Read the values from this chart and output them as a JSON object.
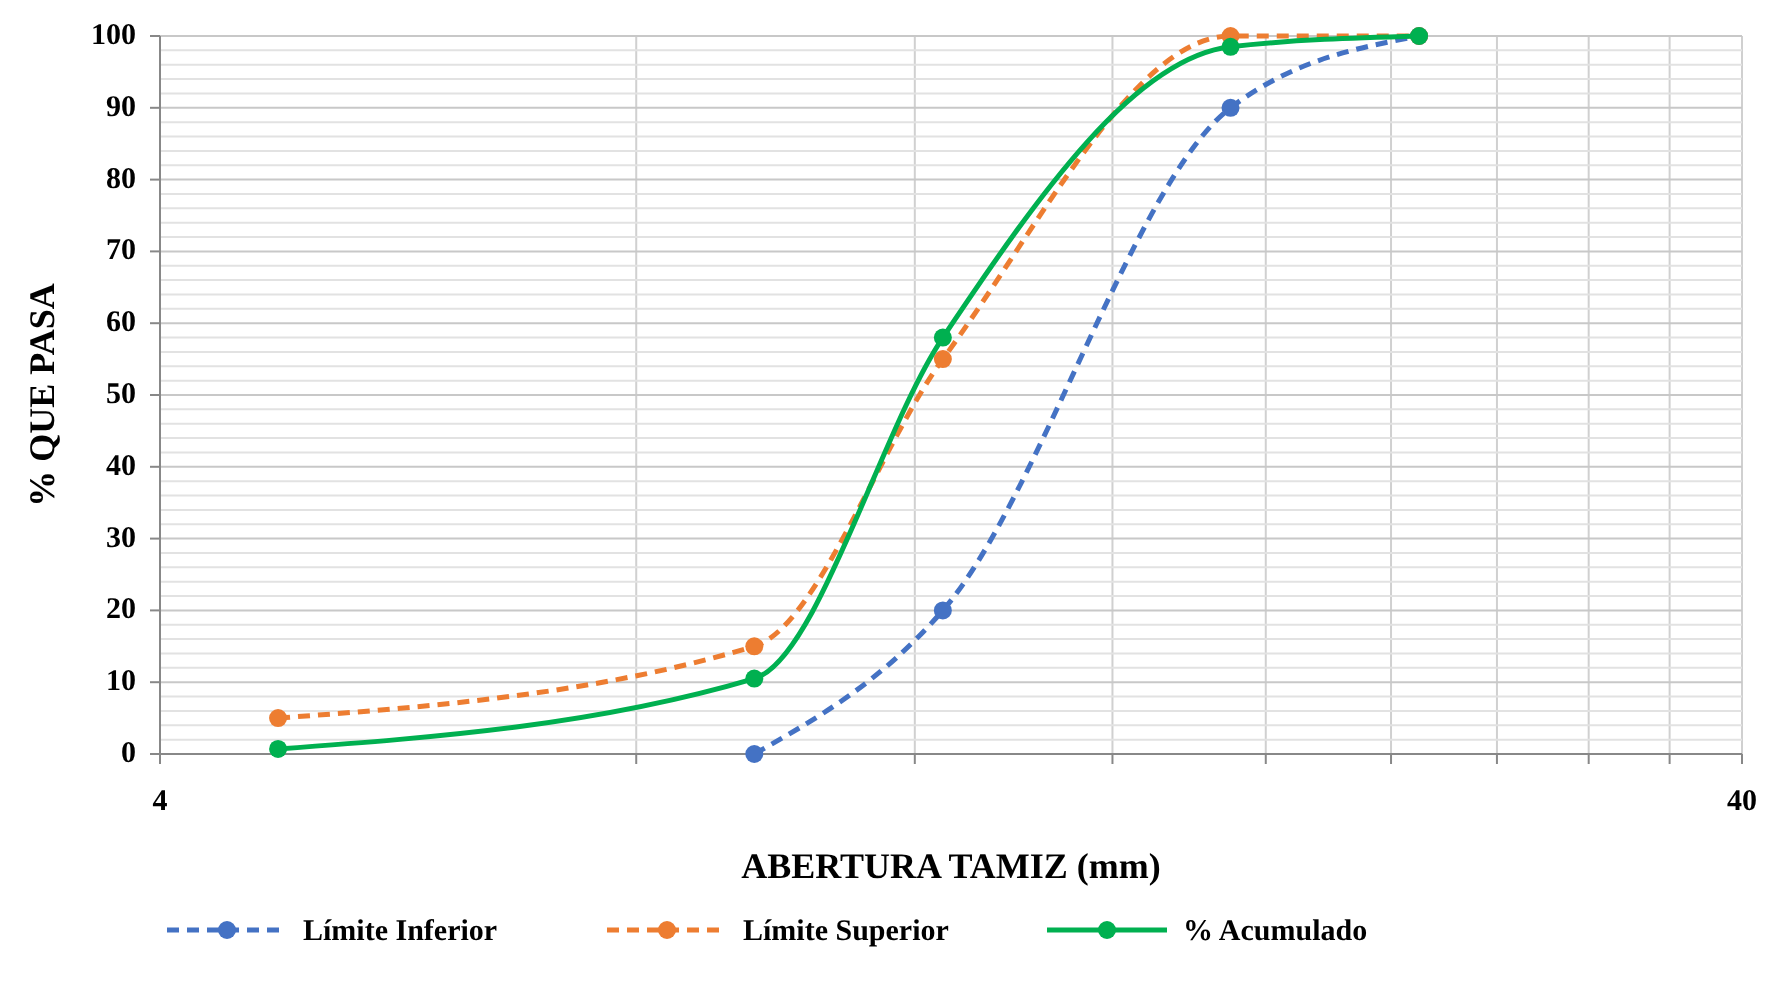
{
  "chart_data": {
    "type": "line",
    "xlabel": "ABERTURA TAMIZ (mm)",
    "ylabel": "% QUE PASA",
    "log": "x",
    "grid": true,
    "legend": "bottom",
    "marker": "circle",
    "xlim": [
      4,
      40
    ],
    "xticks": [
      4,
      {
        "value": 8,
        "label": null
      },
      {
        "value": 12,
        "label": null
      },
      {
        "value": 16,
        "label": null
      },
      {
        "value": 20,
        "label": null
      },
      {
        "value": 24,
        "label": null
      },
      {
        "value": 28,
        "label": null
      },
      {
        "value": 32,
        "label": null
      },
      {
        "value": 36,
        "label": null
      },
      40
    ],
    "ylim": [
      0,
      100
    ],
    "yticks": [
      0,
      {
        "value": 2,
        "label": null
      },
      {
        "value": 4,
        "label": null
      },
      {
        "value": 6,
        "label": null
      },
      {
        "value": 8,
        "label": null
      },
      10,
      {
        "value": 12,
        "label": null
      },
      {
        "value": 14,
        "label": null
      },
      {
        "value": 16,
        "label": null
      },
      {
        "value": 18,
        "label": null
      },
      20,
      {
        "value": 22,
        "label": null
      },
      {
        "value": 24,
        "label": null
      },
      {
        "value": 26,
        "label": null
      },
      {
        "value": 28,
        "label": null
      },
      30,
      {
        "value": 32,
        "label": null
      },
      {
        "value": 34,
        "label": null
      },
      {
        "value": 36,
        "label": null
      },
      {
        "value": 38,
        "label": null
      },
      40,
      {
        "value": 42,
        "label": null
      },
      {
        "value": 44,
        "label": null
      },
      {
        "value": 46,
        "label": null
      },
      {
        "value": 48,
        "label": null
      },
      50,
      {
        "value": 52,
        "label": null
      },
      {
        "value": 54,
        "label": null
      },
      {
        "value": 56,
        "label": null
      },
      {
        "value": 58,
        "label": null
      },
      60,
      {
        "value": 62,
        "label": null
      },
      {
        "value": 64,
        "label": null
      },
      {
        "value": 66,
        "label": null
      },
      {
        "value": 68,
        "label": null
      },
      70,
      {
        "value": 72,
        "label": null
      },
      {
        "value": 74,
        "label": null
      },
      {
        "value": 76,
        "label": null
      },
      {
        "value": 78,
        "label": null
      },
      80,
      {
        "value": 82,
        "label": null
      },
      {
        "value": 84,
        "label": null
      },
      {
        "value": 86,
        "label": null
      },
      {
        "value": 88,
        "label": null
      },
      90,
      {
        "value": 92,
        "label": null
      },
      {
        "value": 94,
        "label": null
      },
      {
        "value": 96,
        "label": null
      },
      {
        "value": 98,
        "label": null
      },
      100
    ],
    "series": [
      {
        "name": "Límite Inferior",
        "color": "#4472c4",
        "line_style": "dashed",
        "x": [
          9.5,
          12.5,
          19,
          25
        ],
        "values": [
          0,
          20,
          90,
          100
        ]
      },
      {
        "name": "Límite Superior",
        "color": "#ed7d31",
        "line_style": "dashed",
        "x": [
          4.75,
          9.5,
          12.5,
          19,
          25
        ],
        "values": [
          5,
          15,
          55,
          100,
          100
        ]
      },
      {
        "name": "% Acumulado",
        "color": "#00b050",
        "line_style": "solid",
        "x": [
          4.75,
          9.5,
          12.5,
          19,
          25
        ],
        "values": [
          0.7,
          10.5,
          58,
          98.5,
          100
        ]
      }
    ]
  }
}
